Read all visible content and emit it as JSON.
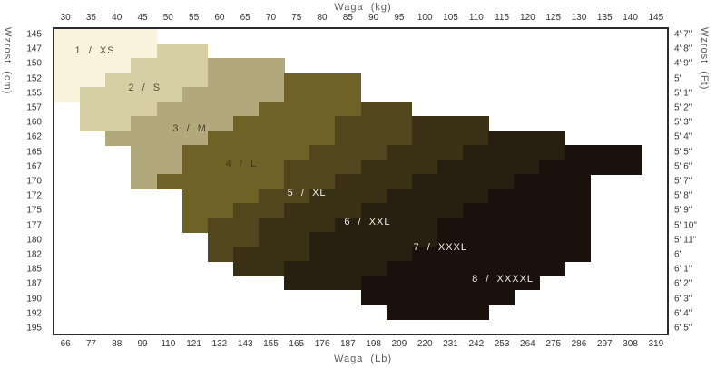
{
  "titles": {
    "top": "Waga  (kg)",
    "bottom": "Waga  (Lb)",
    "left": "Wzrost  (cm)",
    "right": "Wzrost  (Ft)"
  },
  "chart_data": {
    "type": "heatmap",
    "description": "Size chart: weight (kg top / Lb bottom) vs height (cm left / Ft right); stepped diagonal size regions",
    "x_axis_top": {
      "label": "Waga  (kg)",
      "ticks": [
        30,
        35,
        40,
        45,
        50,
        55,
        60,
        65,
        70,
        75,
        80,
        85,
        90,
        95,
        100,
        105,
        110,
        115,
        120,
        125,
        130,
        135,
        140,
        145
      ]
    },
    "x_axis_bottom": {
      "label": "Waga  (Lb)",
      "ticks": [
        66,
        77,
        88,
        99,
        110,
        121,
        132,
        143,
        155,
        165,
        176,
        187,
        198,
        209,
        220,
        231,
        242,
        253,
        264,
        275,
        286,
        297,
        308,
        319
      ]
    },
    "y_axis_left": {
      "label": "Wzrost  (cm)",
      "ticks": [
        145,
        147,
        150,
        152,
        155,
        157,
        160,
        162,
        165,
        167,
        170,
        172,
        175,
        177,
        180,
        182,
        185,
        187,
        190,
        192,
        195
      ]
    },
    "y_axis_right": {
      "label": "Wzrost  (Ft)",
      "ticks": [
        "4' 7\"",
        "4' 8\"",
        "4' 9\"",
        "5'",
        "5' 1\"",
        "5' 2\"",
        "5' 3\"",
        "5' 4\"",
        "5' 5\"",
        "5' 6\"",
        "5' 7\"",
        "5' 8\"",
        "5' 9\"",
        "5' 10\"",
        "5' 11\"",
        "6'",
        "6' 1\"",
        "6' 2\"",
        "6' 3\"",
        "6' 4\"",
        "6' 5\""
      ]
    },
    "kg_span": [
      27.5,
      147.5
    ],
    "grid": {
      "columns": 24,
      "rows": 21,
      "col_step_kg": 5,
      "row_step_cm": 2.5
    },
    "sizes": [
      {
        "num": 1,
        "name": "XS",
        "label": "1  /  XS",
        "color": "#f8f3da",
        "text_color": "#55503c",
        "label_x_pct": 6.6,
        "label_y_pct": 7.0
      },
      {
        "num": 2,
        "name": "S",
        "label": "2  /  S",
        "color": "#d6cfa6",
        "text_color": "#55503c",
        "label_x_pct": 14.7,
        "label_y_pct": 19.2
      },
      {
        "num": 3,
        "name": "M",
        "label": "3  /  M",
        "color": "#b1a97c",
        "text_color": "#4a4531",
        "label_x_pct": 22.1,
        "label_y_pct": 32.8
      },
      {
        "num": 4,
        "name": "L",
        "label": "4  /  L",
        "color": "#6f6226",
        "text_color": "#3f3812",
        "label_x_pct": 30.5,
        "label_y_pct": 44.2
      },
      {
        "num": 5,
        "name": "XL",
        "label": "5  /  XL",
        "color": "#51461e",
        "text_color": "#ececec",
        "label_x_pct": 41.2,
        "label_y_pct": 53.9
      },
      {
        "num": 6,
        "name": "XXL",
        "label": "6  /  XXL",
        "color": "#3a3116",
        "text_color": "#ececec",
        "label_x_pct": 51.1,
        "label_y_pct": 63.4
      },
      {
        "num": 7,
        "name": "XXXL",
        "label": "7  /  XXXL",
        "color": "#271f0f",
        "text_color": "#ececec",
        "label_x_pct": 63.0,
        "label_y_pct": 71.6
      },
      {
        "num": 8,
        "name": "XXXXL",
        "label": "8  /  XXXXL",
        "color": "#1a100c",
        "text_color": "#ececec",
        "label_x_pct": 73.2,
        "label_y_pct": 82.2
      }
    ],
    "rows": [
      {
        "cm": 145,
        "ft": "4' 7\"",
        "runs": [
          [
            1,
            30,
            45
          ]
        ]
      },
      {
        "cm": 147,
        "ft": "4' 8\"",
        "runs": [
          [
            1,
            30,
            45
          ],
          [
            2,
            50,
            55
          ]
        ]
      },
      {
        "cm": 150,
        "ft": "4' 9\"",
        "runs": [
          [
            1,
            30,
            40
          ],
          [
            2,
            45,
            55
          ],
          [
            3,
            60,
            70
          ]
        ]
      },
      {
        "cm": 152,
        "ft": "5'",
        "runs": [
          [
            1,
            30,
            35
          ],
          [
            2,
            40,
            55
          ],
          [
            3,
            60,
            70
          ],
          [
            4,
            75,
            85
          ]
        ]
      },
      {
        "cm": 155,
        "ft": "5' 1\"",
        "runs": [
          [
            1,
            30,
            30
          ],
          [
            2,
            35,
            50
          ],
          [
            3,
            55,
            70
          ],
          [
            4,
            75,
            85
          ]
        ]
      },
      {
        "cm": 157,
        "ft": "5' 2\"",
        "runs": [
          [
            2,
            35,
            45
          ],
          [
            3,
            50,
            65
          ],
          [
            4,
            70,
            85
          ],
          [
            5,
            90,
            95
          ]
        ]
      },
      {
        "cm": 160,
        "ft": "5' 3\"",
        "runs": [
          [
            2,
            35,
            40
          ],
          [
            3,
            45,
            60
          ],
          [
            4,
            65,
            80
          ],
          [
            5,
            85,
            95
          ],
          [
            6,
            100,
            110
          ]
        ]
      },
      {
        "cm": 162,
        "ft": "5' 4\"",
        "runs": [
          [
            3,
            40,
            55
          ],
          [
            4,
            60,
            80
          ],
          [
            5,
            85,
            95
          ],
          [
            6,
            100,
            110
          ],
          [
            7,
            115,
            125
          ]
        ]
      },
      {
        "cm": 165,
        "ft": "5' 5\"",
        "runs": [
          [
            3,
            45,
            50
          ],
          [
            4,
            55,
            75
          ],
          [
            5,
            80,
            90
          ],
          [
            6,
            95,
            105
          ],
          [
            7,
            110,
            125
          ],
          [
            8,
            130,
            140
          ]
        ]
      },
      {
        "cm": 167,
        "ft": "5' 6\"",
        "runs": [
          [
            3,
            45,
            50
          ],
          [
            4,
            55,
            70
          ],
          [
            5,
            75,
            85
          ],
          [
            6,
            90,
            100
          ],
          [
            7,
            105,
            120
          ],
          [
            8,
            125,
            140
          ]
        ]
      },
      {
        "cm": 170,
        "ft": "5' 7\"",
        "runs": [
          [
            3,
            45,
            45
          ],
          [
            4,
            50,
            70
          ],
          [
            5,
            75,
            80
          ],
          [
            6,
            85,
            95
          ],
          [
            7,
            100,
            115
          ],
          [
            8,
            120,
            130
          ]
        ]
      },
      {
        "cm": 172,
        "ft": "5' 8\"",
        "runs": [
          [
            4,
            55,
            65
          ],
          [
            5,
            70,
            75
          ],
          [
            6,
            80,
            90
          ],
          [
            7,
            95,
            110
          ],
          [
            8,
            115,
            130
          ]
        ]
      },
      {
        "cm": 175,
        "ft": "5' 9\"",
        "runs": [
          [
            4,
            55,
            60
          ],
          [
            5,
            65,
            70
          ],
          [
            6,
            75,
            85
          ],
          [
            7,
            90,
            105
          ],
          [
            8,
            110,
            130
          ]
        ]
      },
      {
        "cm": 177,
        "ft": "5' 10\"",
        "runs": [
          [
            4,
            55,
            55
          ],
          [
            5,
            60,
            65
          ],
          [
            6,
            70,
            80
          ],
          [
            7,
            85,
            100
          ],
          [
            8,
            105,
            130
          ]
        ]
      },
      {
        "cm": 180,
        "ft": "5' 11\"",
        "runs": [
          [
            5,
            60,
            65
          ],
          [
            6,
            70,
            75
          ],
          [
            7,
            80,
            100
          ],
          [
            8,
            105,
            130
          ]
        ]
      },
      {
        "cm": 182,
        "ft": "6'",
        "runs": [
          [
            5,
            60,
            60
          ],
          [
            6,
            65,
            75
          ],
          [
            7,
            80,
            95
          ],
          [
            8,
            100,
            130
          ]
        ]
      },
      {
        "cm": 185,
        "ft": "6' 1\"",
        "runs": [
          [
            6,
            65,
            70
          ],
          [
            7,
            75,
            90
          ],
          [
            8,
            95,
            125
          ]
        ]
      },
      {
        "cm": 187,
        "ft": "6' 2\"",
        "runs": [
          [
            7,
            75,
            85
          ],
          [
            8,
            90,
            120
          ]
        ]
      },
      {
        "cm": 190,
        "ft": "6' 3\"",
        "runs": [
          [
            8,
            90,
            115
          ]
        ]
      },
      {
        "cm": 192,
        "ft": "6' 4\"",
        "runs": [
          [
            8,
            95,
            110
          ]
        ]
      },
      {
        "cm": 195,
        "ft": "6' 5\"",
        "runs": []
      }
    ]
  }
}
